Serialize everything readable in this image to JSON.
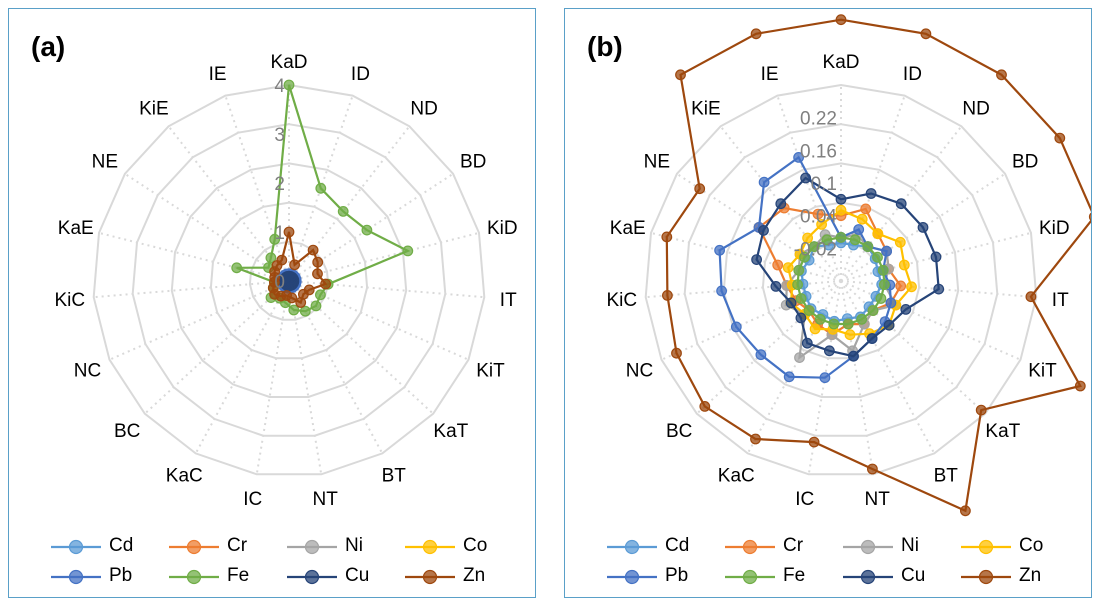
{
  "chart_data": [
    {
      "type": "radar",
      "panel_label": "(a)",
      "categories": [
        "KaD",
        "ID",
        "ND",
        "BD",
        "KiD",
        "IT",
        "KiT",
        "KaT",
        "BT",
        "NT",
        "IC",
        "KaC",
        "BC",
        "NC",
        "KiC",
        "KaE",
        "NE",
        "KiE",
        "IE"
      ],
      "rlim": [
        0,
        4
      ],
      "r_ticks": [
        "0",
        "1",
        "2",
        "3",
        "4"
      ],
      "r_tick_values": [
        0,
        1,
        2,
        3,
        4
      ],
      "grid": true,
      "legend_position": "bottom",
      "series": [
        {
          "name": "Cd",
          "color": "#5b9bd5",
          "values": [
            0.05,
            0.05,
            0.05,
            0.05,
            0.05,
            0.05,
            0.05,
            0.05,
            0.05,
            0.05,
            0.05,
            0.05,
            0.05,
            0.05,
            0.05,
            0.05,
            0.05,
            0.05,
            0.05
          ]
        },
        {
          "name": "Cr",
          "color": "#ed7d31",
          "values": [
            0.1,
            0.1,
            0.1,
            0.1,
            0.1,
            0.1,
            0.1,
            0.1,
            0.1,
            0.1,
            0.1,
            0.1,
            0.1,
            0.1,
            0.1,
            0.1,
            0.1,
            0.1,
            0.1
          ]
        },
        {
          "name": "Ni",
          "color": "#a5a5a5",
          "values": [
            0.08,
            0.08,
            0.08,
            0.08,
            0.08,
            0.08,
            0.08,
            0.08,
            0.08,
            0.08,
            0.08,
            0.08,
            0.08,
            0.08,
            0.08,
            0.08,
            0.08,
            0.08,
            0.08
          ]
        },
        {
          "name": "Co",
          "color": "#ffc000",
          "values": [
            0.06,
            0.06,
            0.06,
            0.06,
            0.06,
            0.06,
            0.06,
            0.06,
            0.06,
            0.06,
            0.06,
            0.06,
            0.06,
            0.06,
            0.06,
            0.06,
            0.06,
            0.06,
            0.06
          ]
        },
        {
          "name": "Pb",
          "color": "#4472c4",
          "values": [
            0.15,
            0.15,
            0.15,
            0.15,
            0.15,
            0.15,
            0.15,
            0.15,
            0.15,
            0.15,
            0.15,
            0.15,
            0.15,
            0.15,
            0.15,
            0.15,
            0.15,
            0.15,
            0.15
          ]
        },
        {
          "name": "Fe",
          "color": "#70ad47",
          "values": [
            4.0,
            2.0,
            1.8,
            1.9,
            2.5,
            0.8,
            0.7,
            0.75,
            0.7,
            0.6,
            0.45,
            0.4,
            0.5,
            0.35,
            0.3,
            1.1,
            0.5,
            0.6,
            0.9
          ]
        },
        {
          "name": "Cu",
          "color": "#264478",
          "values": [
            0.1,
            0.1,
            0.1,
            0.1,
            0.1,
            0.1,
            0.1,
            0.1,
            0.1,
            0.1,
            0.1,
            0.1,
            0.1,
            0.1,
            0.1,
            0.1,
            0.1,
            0.1,
            0.1
          ]
        },
        {
          "name": "Zn",
          "color": "#9e480e",
          "values": [
            1.0,
            0.35,
            0.8,
            0.7,
            0.6,
            0.75,
            0.45,
            0.4,
            0.5,
            0.35,
            0.3,
            0.35,
            0.4,
            0.35,
            0.3,
            0.3,
            0.35,
            0.4,
            0.45
          ]
        }
      ]
    },
    {
      "type": "radar",
      "panel_label": "(b)",
      "categories": [
        "KaD",
        "ID",
        "ND",
        "BD",
        "KiD",
        "IT",
        "KiT",
        "KaT",
        "BT",
        "NT",
        "IC",
        "KaC",
        "BC",
        "NC",
        "KiC",
        "KaE",
        "NE",
        "KiE",
        "IE"
      ],
      "rlim": [
        -0.08,
        0.28
      ],
      "r_ticks": [
        "-0.02",
        "0.04",
        "0.1",
        "0.16",
        "0.22"
      ],
      "r_tick_values": [
        -0.02,
        0.04,
        0.1,
        0.16,
        0.22
      ],
      "grid": true,
      "legend_position": "bottom",
      "series": [
        {
          "name": "Cd",
          "color": "#5b9bd5",
          "values": [
            -0.01,
            -0.01,
            0,
            -0.005,
            -0.01,
            -0.005,
            -0.01,
            -0.01,
            -0.005,
            -0.01,
            -0.005,
            -0.01,
            -0.005,
            -0.01,
            -0.01,
            -0.005,
            -0.01,
            0,
            -0.01
          ]
        },
        {
          "name": "Cr",
          "color": "#ed7d31",
          "values": [
            0.04,
            0.06,
            0.03,
            0.02,
            0.01,
            0.03,
            0.02,
            0.0,
            0.01,
            0.0,
            0.02,
            0.01,
            0.0,
            0.01,
            0.02,
            0.04,
            0.1,
            0.09,
            0.05
          ]
        },
        {
          "name": "Ni",
          "color": "#a5a5a5",
          "values": [
            0.0,
            0.01,
            0.0,
            0.02,
            0.01,
            0.0,
            0.03,
            0.0,
            0.01,
            0.05,
            0.02,
            0.08,
            0.01,
            0.03,
            0.02,
            0.0,
            0.01,
            0.0,
            0.01
          ]
        },
        {
          "name": "Co",
          "color": "#ffc000",
          "values": [
            0.05,
            0.04,
            0.03,
            0.05,
            0.04,
            0.05,
            0.03,
            0.04,
            0.03,
            0.02,
            0.01,
            0.02,
            0.01,
            0.02,
            0.01,
            0.02,
            0.01,
            0.02,
            0.03
          ]
        },
        {
          "name": "Pb",
          "color": "#4472c4",
          "values": [
            0.0,
            0.02,
            0.0,
            0.02,
            0.0,
            0.01,
            0.02,
            0.03,
            0.04,
            0.06,
            0.1,
            0.12,
            0.12,
            0.13,
            0.14,
            0.15,
            0.1,
            0.15,
            0.16
          ]
        },
        {
          "name": "Fe",
          "color": "#70ad47",
          "values": [
            0.0,
            0.0,
            0.0,
            0.0,
            0.0,
            0.0,
            0.0,
            0.0,
            0.0,
            0.0,
            0.0,
            0.0,
            0.0,
            0.0,
            0.0,
            0.0,
            0.0,
            0.0,
            0.0
          ]
        },
        {
          "name": "Cu",
          "color": "#264478",
          "values": [
            0.07,
            0.09,
            0.1,
            0.1,
            0.1,
            0.1,
            0.05,
            0.04,
            0.04,
            0.06,
            0.05,
            0.05,
            0.02,
            0.02,
            0.04,
            0.08,
            0.09,
            0.1,
            0.12
          ]
        },
        {
          "name": "Zn",
          "color": "#9e480e",
          "values": [
            0.4,
            0.4,
            0.4,
            0.4,
            0.4,
            0.27,
            0.4,
            0.27,
            0.4,
            0.27,
            0.22,
            0.25,
            0.26,
            0.25,
            0.24,
            0.25,
            0.23,
            0.4,
            0.4
          ]
        }
      ]
    }
  ]
}
